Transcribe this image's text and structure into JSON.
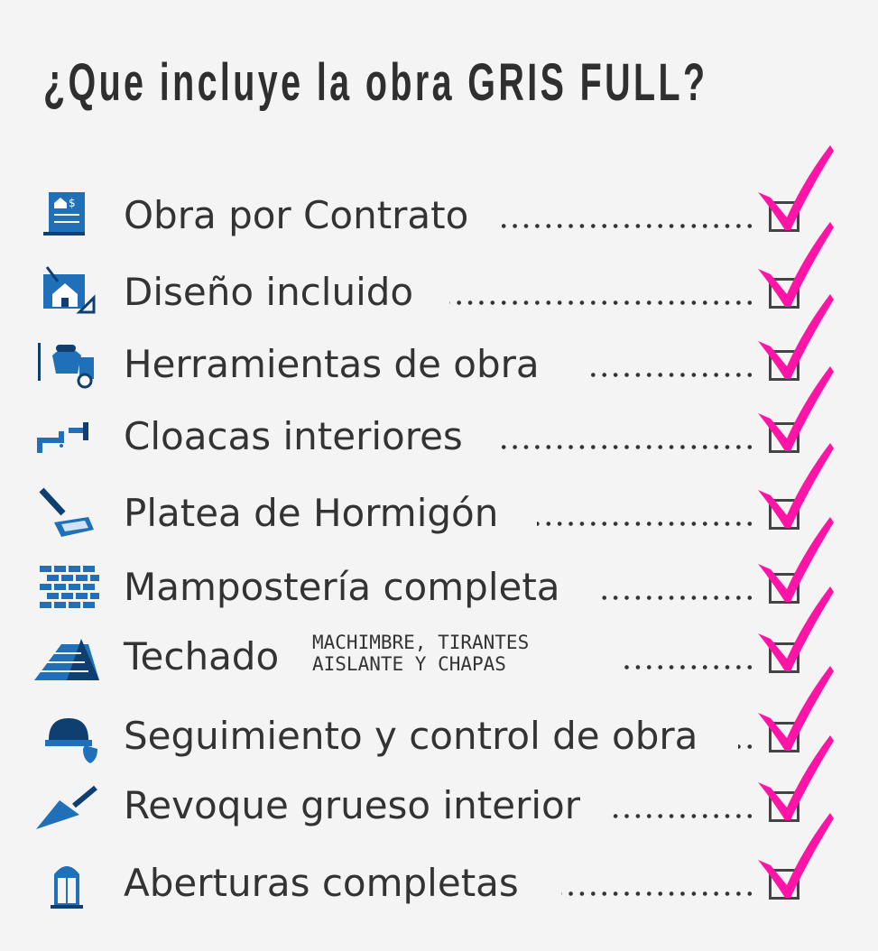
{
  "title": "¿Que incluye la obra GRIS FULL?",
  "colors": {
    "icon": "#1f70b8",
    "icon_dark": "#0f3f70",
    "check": "#ff14a8",
    "text": "#333333",
    "background": "#f4f4f4"
  },
  "items": [
    {
      "label": "Obra por Contrato",
      "icon": "contract-document-icon",
      "checked": true
    },
    {
      "label": "Diseño incluido",
      "icon": "house-blueprint-icon",
      "checked": true
    },
    {
      "label": "Herramientas de obra",
      "icon": "concrete-mixer-icon",
      "checked": true
    },
    {
      "label": "Cloacas interiores",
      "icon": "pipes-icon",
      "checked": true
    },
    {
      "label": "Platea de Hormigón",
      "icon": "concrete-pour-icon",
      "checked": true
    },
    {
      "label": "Mampostería completa",
      "icon": "brick-wall-icon",
      "checked": true
    },
    {
      "label": "Techado",
      "sub1": "MACHIMBRE, TIRANTES",
      "sub2": "AISLANTE Y CHAPAS",
      "icon": "roof-tiles-icon",
      "checked": true
    },
    {
      "label": "Seguimiento y control de obra",
      "icon": "hardhat-shield-icon",
      "checked": true
    },
    {
      "label": "Revoque grueso interior",
      "icon": "trowel-icon",
      "checked": true
    },
    {
      "label": "Aberturas completas",
      "icon": "window-icon",
      "checked": true
    }
  ]
}
